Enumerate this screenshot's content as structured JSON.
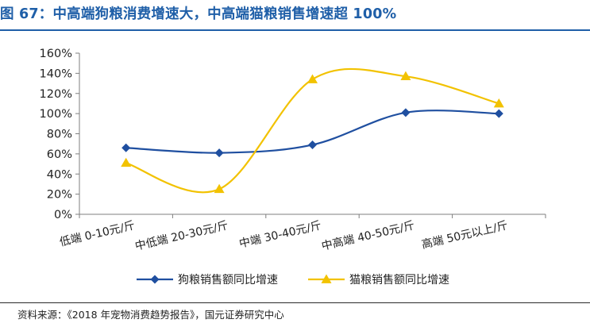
{
  "figure": {
    "title": "图 67：中高端狗粮消费增速大，中高端猫粮销售增速超 100%",
    "source": "资料来源：《2018 年宠物消费趋势报告》，国元证券研究中心"
  },
  "colors": {
    "title": "#1F5FA8",
    "series_dog": "#1F4FA0",
    "series_cat": "#F2C200",
    "axis": "#7f7f7f"
  },
  "chart_data": {
    "type": "line",
    "smooth": true,
    "categories": [
      "低端 0-10元/斤",
      "中低端 20-30元/斤",
      "中端 30-40元/斤",
      "中高端 40-50元/斤",
      "高端 50元以上/斤"
    ],
    "series": [
      {
        "name": "狗粮销售额同比增速",
        "marker": "diamond",
        "values": [
          66,
          61,
          69,
          101,
          100
        ]
      },
      {
        "name": "猫粮销售额同比增速",
        "marker": "triangle",
        "values": [
          51,
          25,
          134,
          137,
          110
        ]
      }
    ],
    "ylim": [
      0,
      160
    ],
    "yticks": [
      "0%",
      "20%",
      "40%",
      "60%",
      "80%",
      "100%",
      "120%",
      "140%",
      "160%"
    ],
    "xlabel": "",
    "ylabel": "",
    "grid": false,
    "legend_position": "bottom"
  }
}
